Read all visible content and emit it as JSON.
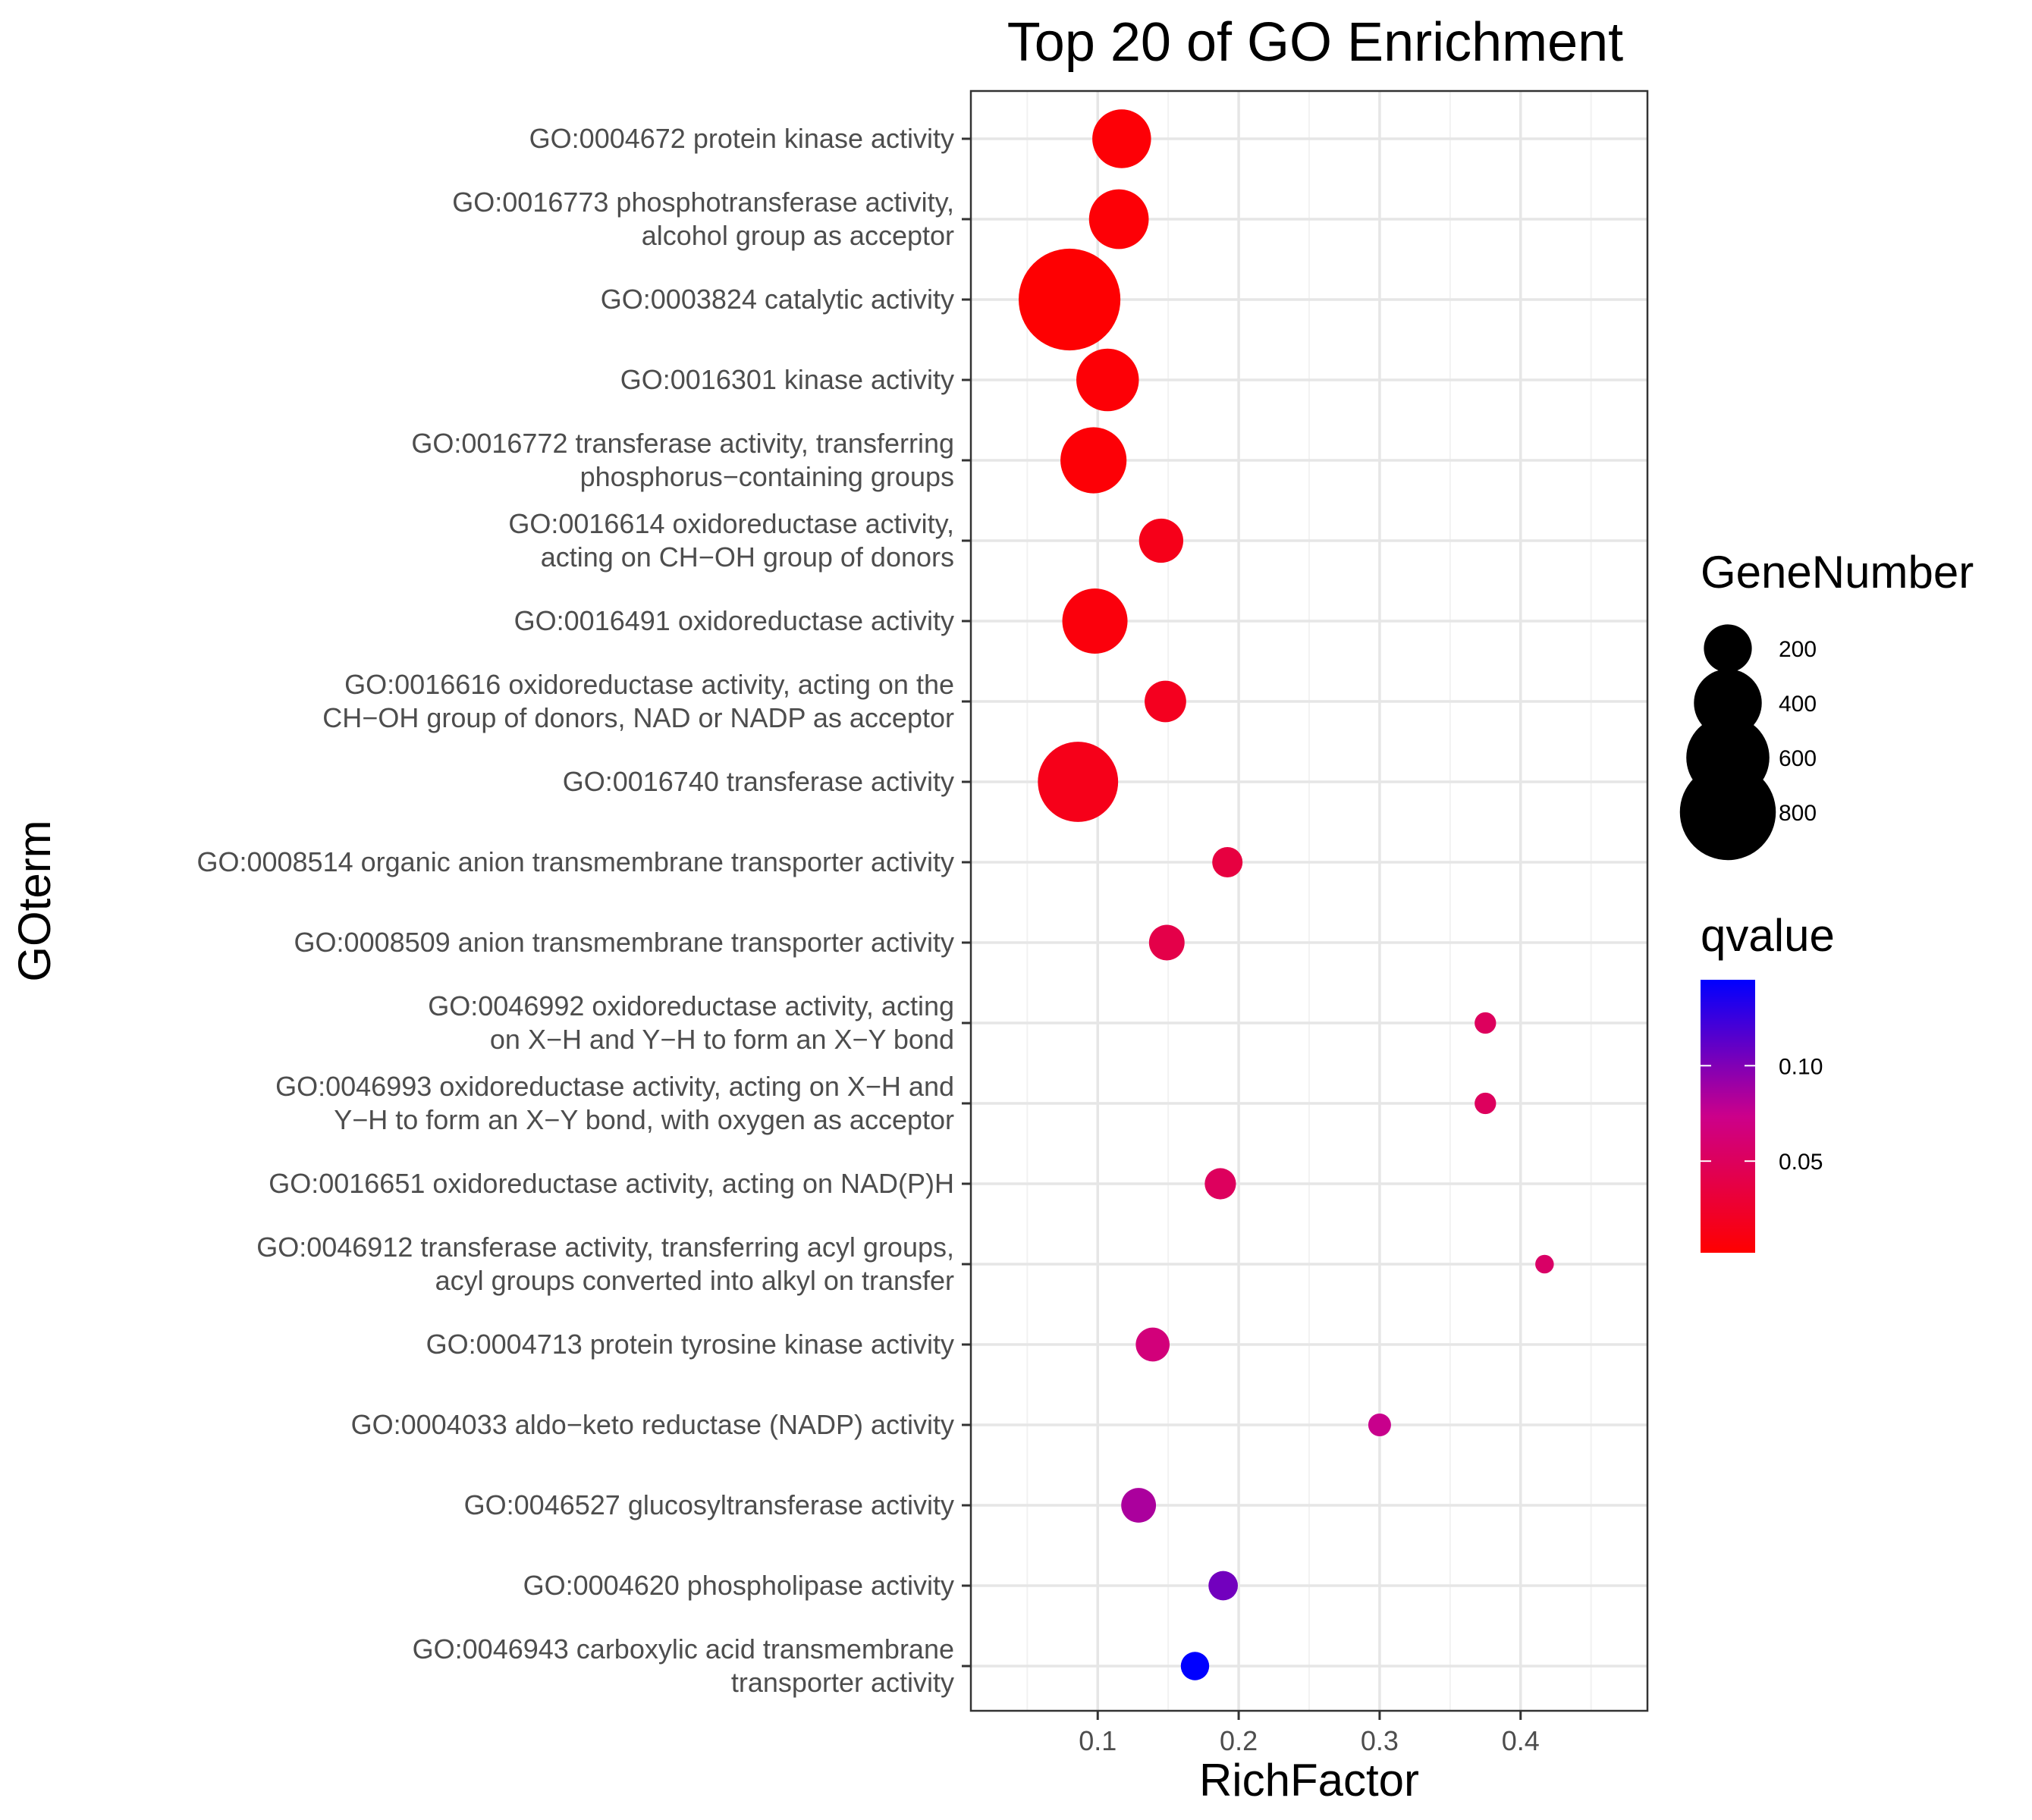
{
  "chart_data": {
    "type": "scatter",
    "title": "Top 20 of GO Enrichment",
    "xlabel": "RichFactor",
    "ylabel": "GOterm",
    "xlim": [
      0.01,
      0.49
    ],
    "xticks": [
      0.1,
      0.2,
      0.3,
      0.4
    ],
    "xtick_labels": [
      "0.1",
      "0.2",
      "0.3",
      "0.4"
    ],
    "grid": true,
    "points": [
      {
        "label": [
          "GO:0004672 protein kinase activity"
        ],
        "richfactor": 0.117,
        "gene_number": 300,
        "qvalue": 0.005
      },
      {
        "label": [
          "GO:0016773 phosphotransferase activity,",
          "alcohol group as acceptor"
        ],
        "richfactor": 0.115,
        "gene_number": 310,
        "qvalue": 0.005
      },
      {
        "label": [
          "GO:0003824 catalytic activity"
        ],
        "richfactor": 0.08,
        "gene_number": 900,
        "qvalue": 0.003
      },
      {
        "label": [
          "GO:0016301 kinase activity"
        ],
        "richfactor": 0.107,
        "gene_number": 340,
        "qvalue": 0.005
      },
      {
        "label": [
          "GO:0016772 transferase activity, transferring",
          "phosphorus−containing groups"
        ],
        "richfactor": 0.097,
        "gene_number": 380,
        "qvalue": 0.005
      },
      {
        "label": [
          "GO:0016614 oxidoreductase activity,",
          "acting on CH−OH group of donors"
        ],
        "richfactor": 0.145,
        "gene_number": 170,
        "qvalue": 0.015
      },
      {
        "label": [
          "GO:0016491 oxidoreductase activity"
        ],
        "richfactor": 0.098,
        "gene_number": 370,
        "qvalue": 0.008
      },
      {
        "label": [
          "GO:0016616 oxidoreductase activity, acting on the",
          "CH−OH group of donors, NAD or NADP as acceptor"
        ],
        "richfactor": 0.148,
        "gene_number": 150,
        "qvalue": 0.018
      },
      {
        "label": [
          "GO:0016740 transferase activity"
        ],
        "richfactor": 0.086,
        "gene_number": 560,
        "qvalue": 0.015
      },
      {
        "label": [
          "GO:0008514 organic anion transmembrane transporter activity"
        ],
        "richfactor": 0.192,
        "gene_number": 80,
        "qvalue": 0.035
      },
      {
        "label": [
          "GO:0008509 anion transmembrane transporter activity"
        ],
        "richfactor": 0.149,
        "gene_number": 110,
        "qvalue": 0.04
      },
      {
        "label": [
          "GO:0046992 oxidoreductase activity, acting",
          "on X−H and Y−H to form an X−Y bond"
        ],
        "richfactor": 0.375,
        "gene_number": 40,
        "qvalue": 0.05
      },
      {
        "label": [
          "GO:0046993 oxidoreductase activity, acting on X−H and",
          "Y−H to form an X−Y bond, with oxygen as acceptor"
        ],
        "richfactor": 0.375,
        "gene_number": 40,
        "qvalue": 0.05
      },
      {
        "label": [
          "GO:0016651 oxidoreductase activity, acting on NAD(P)H"
        ],
        "richfactor": 0.187,
        "gene_number": 85,
        "qvalue": 0.05
      },
      {
        "label": [
          "GO:0046912 transferase activity, transferring acyl groups,",
          "acyl groups converted into alkyl on transfer"
        ],
        "richfactor": 0.417,
        "gene_number": 30,
        "qvalue": 0.055
      },
      {
        "label": [
          "GO:0004713 protein tyrosine kinase activity"
        ],
        "richfactor": 0.139,
        "gene_number": 100,
        "qvalue": 0.065
      },
      {
        "label": [
          "GO:0004033 aldo−keto reductase (NADP) activity"
        ],
        "richfactor": 0.3,
        "gene_number": 45,
        "qvalue": 0.075
      },
      {
        "label": [
          "GO:0046527 glucosyltransferase activity"
        ],
        "richfactor": 0.129,
        "gene_number": 105,
        "qvalue": 0.085
      },
      {
        "label": [
          "GO:0004620 phospholipase activity"
        ],
        "richfactor": 0.189,
        "gene_number": 75,
        "qvalue": 0.105
      },
      {
        "label": [
          "GO:0046943 carboxylic acid transmembrane",
          "transporter activity"
        ],
        "richfactor": 0.169,
        "gene_number": 70,
        "qvalue": 0.145
      }
    ],
    "size_legend": {
      "title": "GeneNumber",
      "values": [
        200,
        400,
        600,
        800
      ],
      "labels": [
        "200",
        "400",
        "600",
        "800"
      ]
    },
    "color_legend": {
      "title": "qvalue",
      "range": [
        0.002,
        0.145
      ],
      "ticks": [
        0.05,
        0.1
      ],
      "tick_labels": [
        "0.05",
        "0.10"
      ],
      "low_color": "#ff0000",
      "high_color": "#0000ff"
    }
  }
}
